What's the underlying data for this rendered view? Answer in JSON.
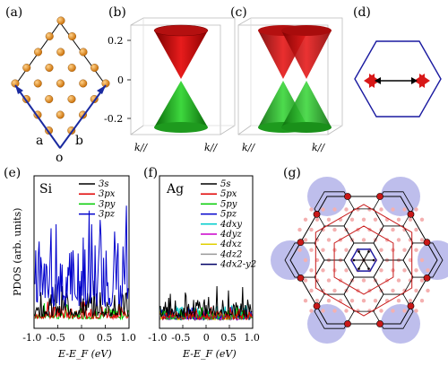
{
  "panels": {
    "a": {
      "label": "(a)",
      "vec_a": "a",
      "vec_b": "b",
      "origin": "o"
    },
    "b": {
      "label": "(b)",
      "yticks": [
        "0.2",
        "0",
        "-0.2"
      ],
      "k1": "k//",
      "k2": "k//"
    },
    "c": {
      "label": "(c)",
      "k1": "k//",
      "k2": "k//"
    },
    "d": {
      "label": "(d)"
    },
    "e": {
      "label": "(e)",
      "element": "Si"
    },
    "f": {
      "label": "(f)",
      "element": "Ag"
    },
    "g": {
      "label": "(g)"
    }
  },
  "axes": {
    "ylabel": "PDOS (arb. units)",
    "xlabel": "E-E_F (eV)",
    "xticks": [
      "-1.0",
      "-0.5",
      "0",
      "0.5",
      "1.0"
    ]
  },
  "chart_data": [
    {
      "type": "line",
      "panel": "e",
      "xlim": [
        -1.0,
        1.0
      ],
      "series": [
        {
          "name": "3s",
          "color": "#000000"
        },
        {
          "name": "3px",
          "color": "#e00000"
        },
        {
          "name": "3py",
          "color": "#00cc00"
        },
        {
          "name": "3pz",
          "color": "#0000cc"
        }
      ]
    },
    {
      "type": "line",
      "panel": "f",
      "xlim": [
        -1.0,
        1.0
      ],
      "series": [
        {
          "name": "5s",
          "color": "#000000"
        },
        {
          "name": "5px",
          "color": "#e00000"
        },
        {
          "name": "5py",
          "color": "#00cc00"
        },
        {
          "name": "5pz",
          "color": "#0000cc"
        },
        {
          "name": "4dxy",
          "color": "#00cccc"
        },
        {
          "name": "4dyz",
          "color": "#cc00cc"
        },
        {
          "name": "4dxz",
          "color": "#e0d000"
        },
        {
          "name": "4dz2",
          "color": "#999999"
        },
        {
          "name": "4dx2-y2",
          "color": "#000066"
        }
      ]
    }
  ],
  "colors": {
    "atom": "#e08a1e",
    "cone_red": "#d81818",
    "cone_green": "#22b022",
    "hex_blue": "#1a1aa0",
    "bz_red": "#c81818",
    "disk": "#8888dd"
  }
}
